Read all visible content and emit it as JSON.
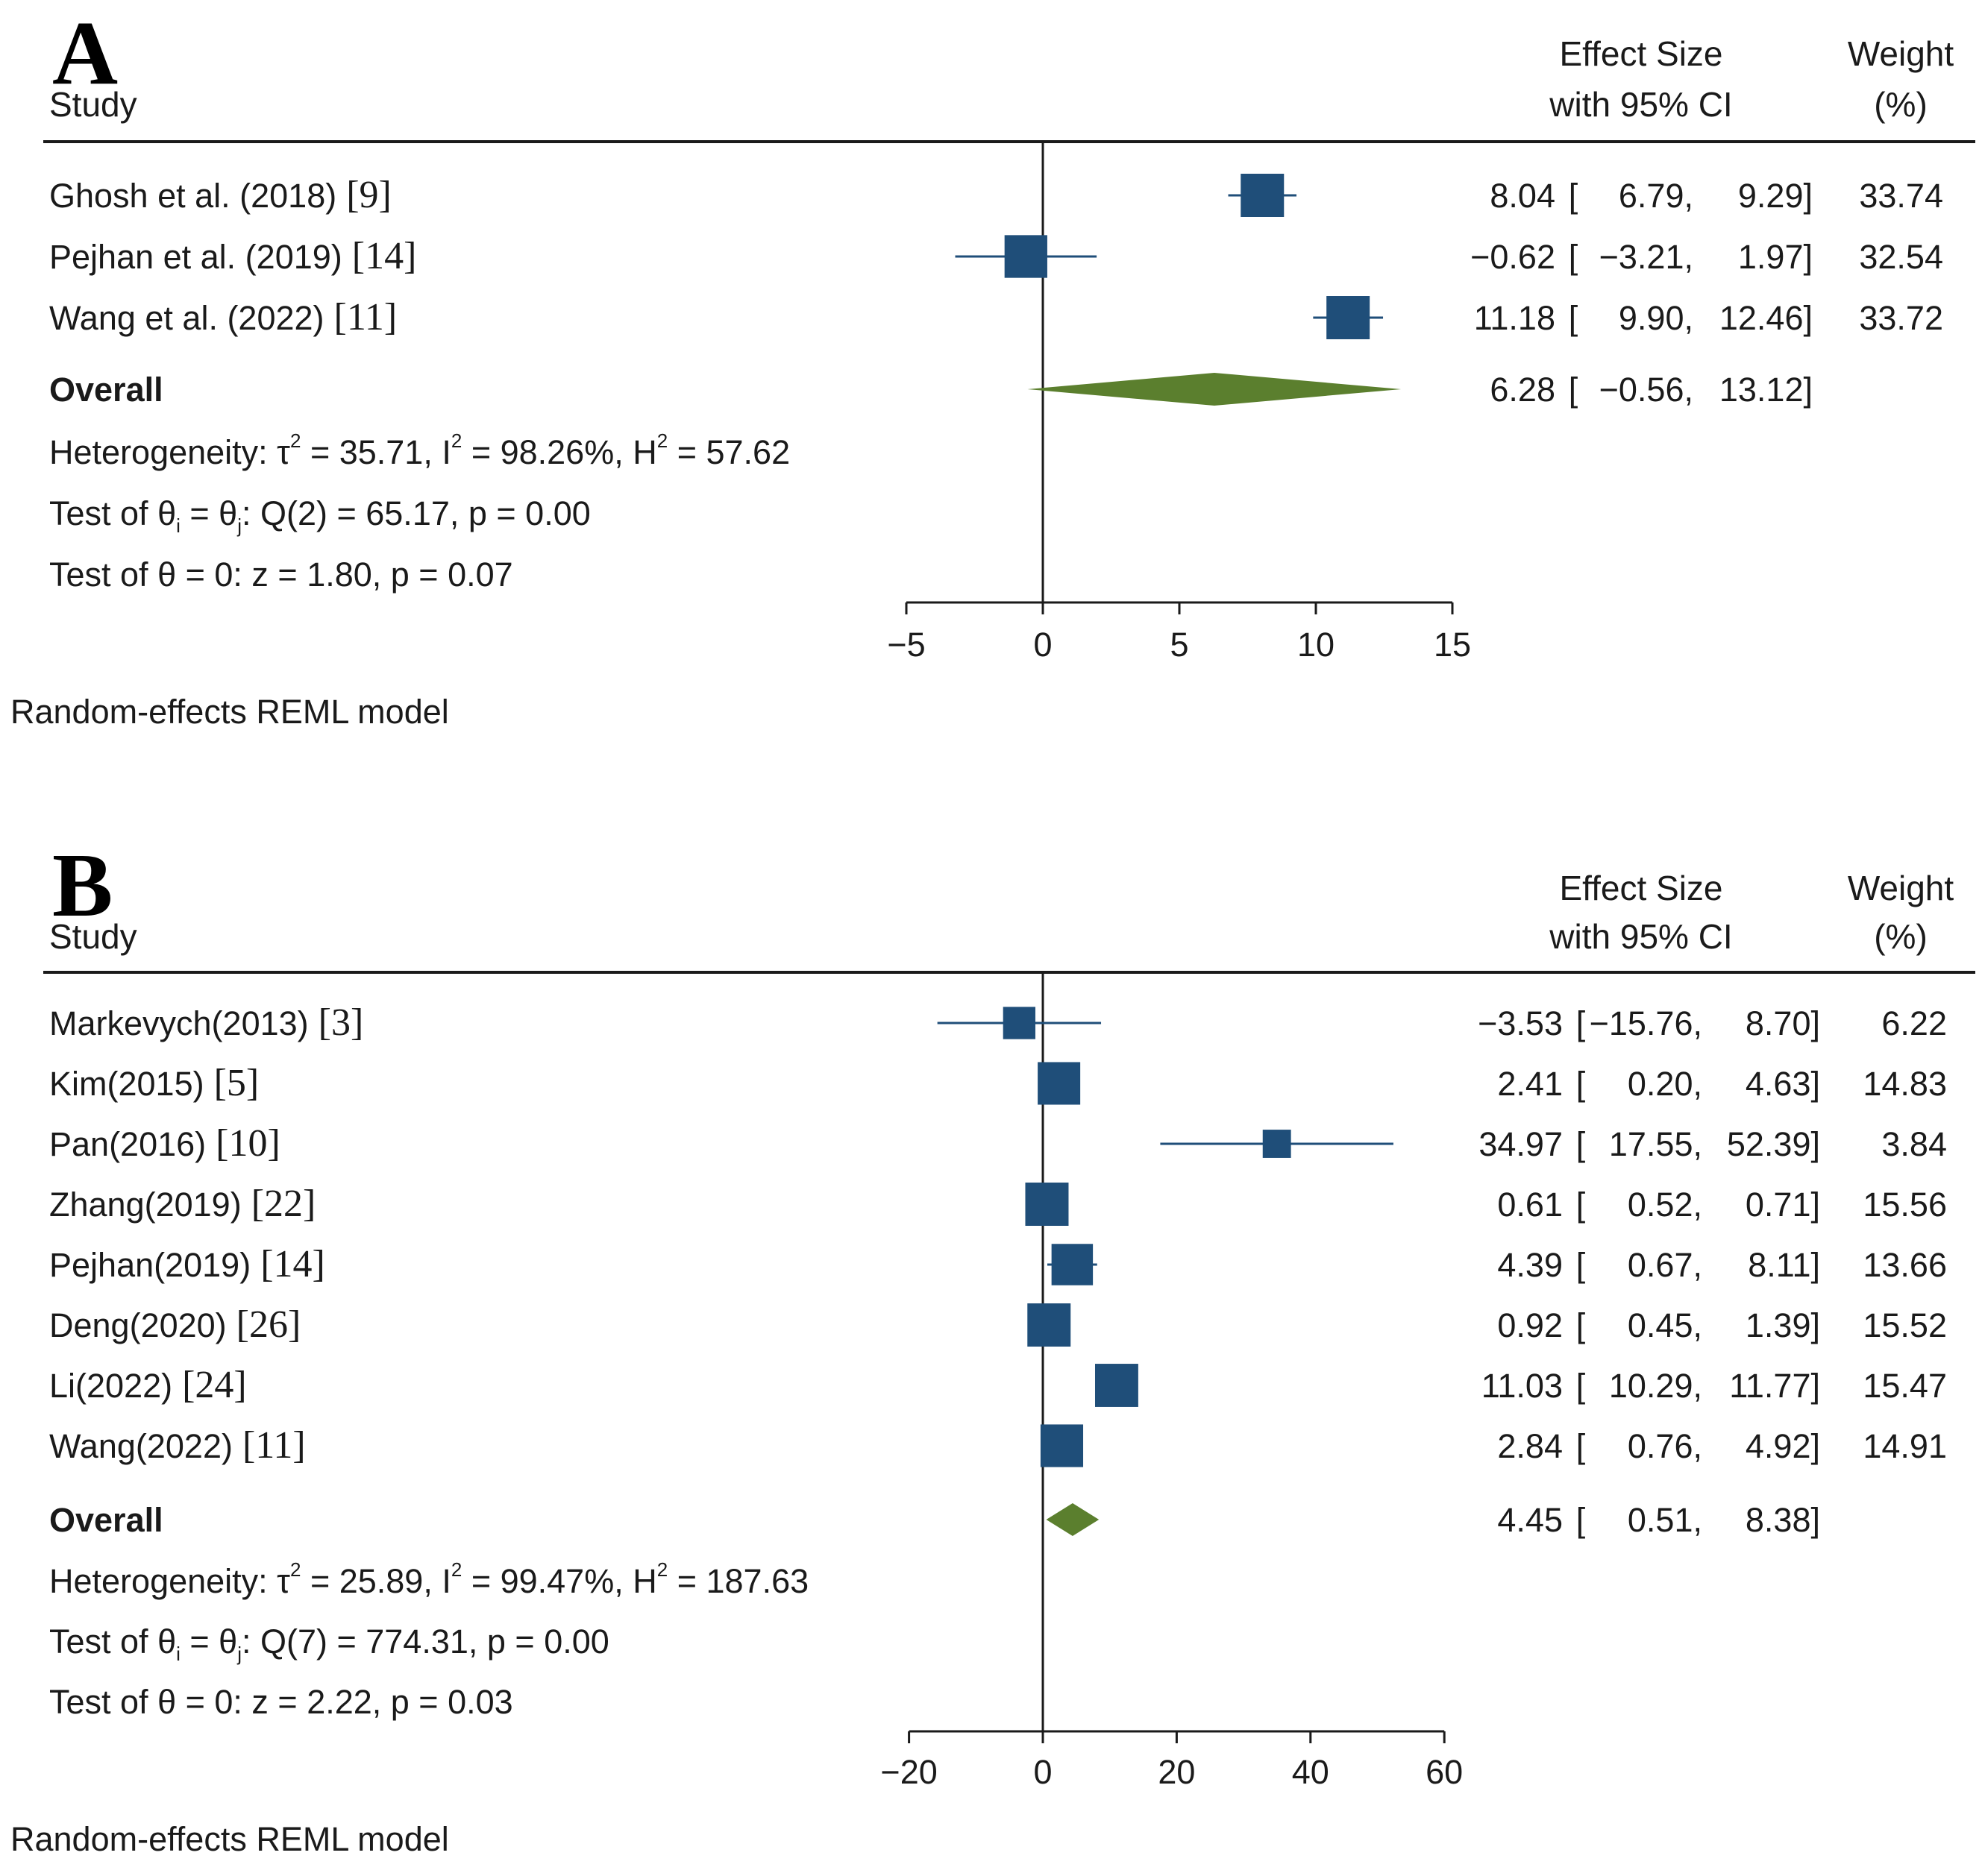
{
  "chart_data": [
    {
      "type": "forest",
      "panel": "A",
      "header": {
        "study": "Study",
        "effect_line1": "Effect Size",
        "effect_line2": "with 95% CI",
        "weight_line1": "Weight",
        "weight_line2": "(%)"
      },
      "studies": [
        {
          "label": "Ghosh et al. (2018)",
          "ref": "[9]",
          "es": 8.04,
          "lo": 6.79,
          "hi": 9.29,
          "es_text": "8.04",
          "lo_text": "6.79,",
          "hi_text": "9.29]",
          "weight": "33.74",
          "weight_value": 33.74
        },
        {
          "label": "Pejhan et al. (2019)",
          "ref": "[14]",
          "es": -0.62,
          "lo": -3.21,
          "hi": 1.97,
          "es_text": "−0.62",
          "lo_text": "−3.21,",
          "hi_text": "1.97]",
          "weight": "32.54",
          "weight_value": 32.54
        },
        {
          "label": "Wang et al. (2022)",
          "ref": "[11]",
          "es": 11.18,
          "lo": 9.9,
          "hi": 12.46,
          "es_text": "11.18",
          "lo_text": "9.90,",
          "hi_text": "12.46]",
          "weight": "33.72",
          "weight_value": 33.72
        }
      ],
      "overall": {
        "label": "Overall",
        "es": 6.28,
        "lo": -0.56,
        "hi": 13.12,
        "es_text": "6.28",
        "lo_text": "−0.56,",
        "hi_text": "13.12]"
      },
      "stats": {
        "heterogeneity": {
          "prefix": "Heterogeneity: τ",
          "tau2": " = 35.71, I",
          "i2": " = 98.26%, H",
          "h2": " = 57.62"
        },
        "test_theta_ij": {
          "prefix": "Test of θ",
          "i": "i",
          "mid": " = θ",
          "j": "j",
          "rest": ": Q(2) = 65.17, p = 0.00"
        },
        "test_theta_0": "Test of θ = 0: z = 1.80, p = 0.07"
      },
      "axis": {
        "min": -5,
        "max": 15,
        "ticks": [
          -5,
          0,
          5,
          10,
          15
        ],
        "tick_labels": [
          "−5",
          "0",
          "5",
          "10",
          "15"
        ]
      },
      "model_note": "Random-effects REML model"
    },
    {
      "type": "forest",
      "panel": "B",
      "header": {
        "study": "Study",
        "effect_line1": "Effect Size",
        "effect_line2": "with 95% CI",
        "weight_line1": "Weight",
        "weight_line2": "(%)"
      },
      "studies": [
        {
          "label": "Markevych(2013)",
          "ref": "[3]",
          "es": -3.53,
          "lo": -15.76,
          "hi": 8.7,
          "es_text": "−3.53",
          "lo_text": "−15.76,",
          "hi_text": "8.70]",
          "weight": "6.22",
          "weight_value": 6.22
        },
        {
          "label": "Kim(2015)",
          "ref": "[5]",
          "es": 2.41,
          "lo": 0.2,
          "hi": 4.63,
          "es_text": "2.41",
          "lo_text": "0.20,",
          "hi_text": "4.63]",
          "weight": "14.83",
          "weight_value": 14.83
        },
        {
          "label": "Pan(2016)",
          "ref": "[10]",
          "es": 34.97,
          "lo": 17.55,
          "hi": 52.39,
          "es_text": "34.97",
          "lo_text": "17.55,",
          "hi_text": "52.39]",
          "weight": "3.84",
          "weight_value": 3.84
        },
        {
          "label": "Zhang(2019)",
          "ref": "[22]",
          "es": 0.61,
          "lo": 0.52,
          "hi": 0.71,
          "es_text": "0.61",
          "lo_text": "0.52,",
          "hi_text": "0.71]",
          "weight": "15.56",
          "weight_value": 15.56
        },
        {
          "label": "Pejhan(2019)",
          "ref": "[14]",
          "es": 4.39,
          "lo": 0.67,
          "hi": 8.11,
          "es_text": "4.39",
          "lo_text": "0.67,",
          "hi_text": "8.11]",
          "weight": "13.66",
          "weight_value": 13.66
        },
        {
          "label": "Deng(2020)",
          "ref": "[26]",
          "es": 0.92,
          "lo": 0.45,
          "hi": 1.39,
          "es_text": "0.92",
          "lo_text": "0.45,",
          "hi_text": "1.39]",
          "weight": "15.52",
          "weight_value": 15.52
        },
        {
          "label": "Li(2022)",
          "ref": "[24]",
          "es": 11.03,
          "lo": 10.29,
          "hi": 11.77,
          "es_text": "11.03",
          "lo_text": "10.29,",
          "hi_text": "11.77]",
          "weight": "15.47",
          "weight_value": 15.47
        },
        {
          "label": "Wang(2022)",
          "ref": "[11]",
          "es": 2.84,
          "lo": 0.76,
          "hi": 4.92,
          "es_text": "2.84",
          "lo_text": "0.76,",
          "hi_text": "4.92]",
          "weight": "14.91",
          "weight_value": 14.91
        }
      ],
      "overall": {
        "label": "Overall",
        "es": 4.45,
        "lo": 0.51,
        "hi": 8.38,
        "es_text": "4.45",
        "lo_text": "0.51,",
        "hi_text": "8.38]"
      },
      "stats": {
        "heterogeneity": {
          "prefix": "Heterogeneity: τ",
          "tau2": " = 25.89, I",
          "i2": " = 99.47%, H",
          "h2": " = 187.63"
        },
        "test_theta_ij": {
          "prefix": "Test of θ",
          "i": "i",
          "mid": " = θ",
          "j": "j",
          "rest": ": Q(7) = 774.31, p = 0.00"
        },
        "test_theta_0": "Test of θ = 0: z = 2.22, p = 0.03"
      },
      "axis": {
        "min": -20,
        "max": 60,
        "ticks": [
          -20,
          0,
          20,
          40,
          60
        ],
        "tick_labels": [
          "−20",
          "0",
          "20",
          "40",
          "60"
        ]
      },
      "model_note": "Random-effects REML model"
    }
  ],
  "colors": {
    "marker": "#1f4e79",
    "diamond": "#5b7f2e",
    "text": "#1a1a1a",
    "line": "#1a1a1a"
  }
}
